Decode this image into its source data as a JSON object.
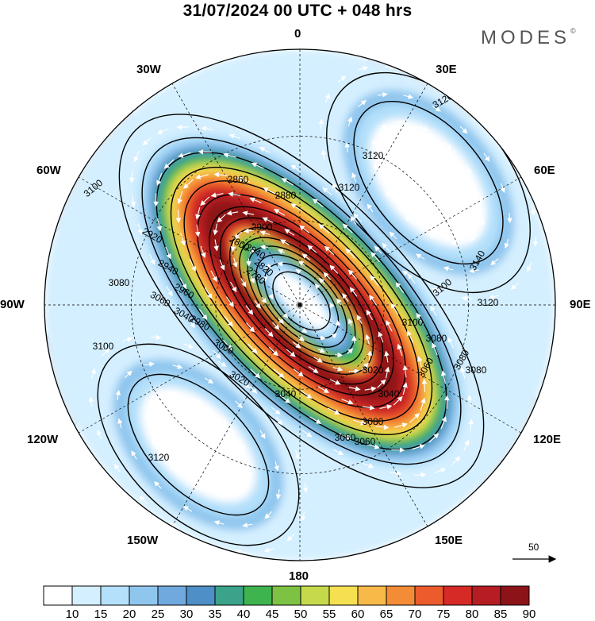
{
  "title": "31/07/2024  00 UTC  + 048 hrs",
  "brand": "MODES",
  "brand_mark": "©",
  "longitude_labels": {
    "n0": "0",
    "n30e": "30E",
    "n60e": "60E",
    "n90e": "90E",
    "n120e": "120E",
    "n150e": "150E",
    "n180": "180",
    "n150w": "150W",
    "n120w": "120W",
    "n90w": "90W",
    "n60w": "60W",
    "n30w": "30W"
  },
  "contour_labels": [
    "3120",
    "3140",
    "3120",
    "3100",
    "3080",
    "3060",
    "3080",
    "3060",
    "3040",
    "3020",
    "3000",
    "2980",
    "2960",
    "2940",
    "2920",
    "2900",
    "2880",
    "2860",
    "2840",
    "2820",
    "2800",
    "2780",
    "3100",
    "3080",
    "3060",
    "3040",
    "3120",
    "3120",
    "3100",
    "3080",
    "3020",
    "3040",
    "3060",
    "3080",
    "3120",
    "3100"
  ],
  "reference_vector": "50",
  "colorbar": {
    "ticks": [
      "10",
      "15",
      "20",
      "25",
      "30",
      "35",
      "40",
      "45",
      "50",
      "55",
      "60",
      "65",
      "70",
      "75",
      "80",
      "85",
      "90"
    ],
    "colors": [
      "#ffffff",
      "#d4efff",
      "#b4e0fb",
      "#8fc6ee",
      "#6fa9de",
      "#4d8fc6",
      "#3aa38a",
      "#3fb34d",
      "#7dc242",
      "#c6d94a",
      "#f5e052",
      "#f7b947",
      "#f48b36",
      "#ec5b2c",
      "#d62a26",
      "#b51d23",
      "#8c1419"
    ]
  },
  "colors": {
    "jet_core": "#8c1419",
    "land": "#e8e8e8",
    "contour": "#000000",
    "wind_arrow": "#ffffff"
  }
}
